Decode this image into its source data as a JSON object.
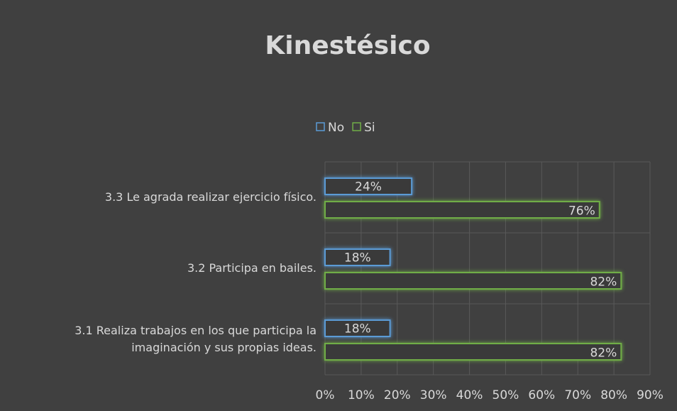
{
  "chart_data": {
    "type": "bar",
    "orientation": "horizontal",
    "title": "Kinestésico",
    "categories": [
      "3.3 Le agrada realizar ejercicio físico.",
      "3.2 Participa en bailes.",
      "3.1 Realiza trabajos en los que participa la imaginación y sus propias ideas."
    ],
    "series": [
      {
        "name": "No",
        "color": "#5b9bd5",
        "values": [
          24,
          18,
          18
        ],
        "value_labels": [
          "24%",
          "18%",
          "18%"
        ]
      },
      {
        "name": "Si",
        "color": "#70ad47",
        "values": [
          76,
          82,
          82
        ],
        "value_labels": [
          "76%",
          "82%",
          "82%"
        ]
      }
    ],
    "xlim": [
      0,
      90
    ],
    "xticks": [
      {
        "value": 0,
        "label": "0%"
      },
      {
        "value": 10,
        "label": "10%"
      },
      {
        "value": 20,
        "label": "20%"
      },
      {
        "value": 30,
        "label": "30%"
      },
      {
        "value": 40,
        "label": "40%"
      },
      {
        "value": 50,
        "label": "50%"
      },
      {
        "value": 60,
        "label": "60%"
      },
      {
        "value": 70,
        "label": "70%"
      },
      {
        "value": 80,
        "label": "80%"
      },
      {
        "value": 90,
        "label": "90%"
      }
    ],
    "grid": true,
    "legend": "top"
  }
}
